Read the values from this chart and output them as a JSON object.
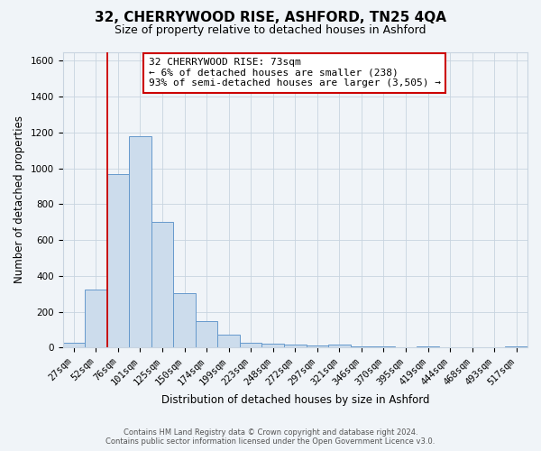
{
  "title": "32, CHERRYWOOD RISE, ASHFORD, TN25 4QA",
  "subtitle": "Size of property relative to detached houses in Ashford",
  "xlabel": "Distribution of detached houses by size in Ashford",
  "ylabel": "Number of detached properties",
  "bar_labels": [
    "27sqm",
    "52sqm",
    "76sqm",
    "101sqm",
    "125sqm",
    "150sqm",
    "174sqm",
    "199sqm",
    "223sqm",
    "248sqm",
    "272sqm",
    "297sqm",
    "321sqm",
    "346sqm",
    "370sqm",
    "395sqm",
    "419sqm",
    "444sqm",
    "468sqm",
    "493sqm",
    "517sqm"
  ],
  "bar_values": [
    25,
    325,
    970,
    1180,
    700,
    305,
    150,
    70,
    25,
    20,
    15,
    10,
    15,
    5,
    5,
    0,
    5,
    0,
    0,
    0,
    5
  ],
  "bar_color": "#ccdcec",
  "bar_edge_color": "#6699cc",
  "ylim": [
    0,
    1650
  ],
  "yticks": [
    0,
    200,
    400,
    600,
    800,
    1000,
    1200,
    1400,
    1600
  ],
  "vline_index": 2,
  "vline_color": "#cc0000",
  "annotation_title": "32 CHERRYWOOD RISE: 73sqm",
  "annotation_line1": "← 6% of detached houses are smaller (238)",
  "annotation_line2": "93% of semi-detached houses are larger (3,505) →",
  "annotation_box_color": "#ffffff",
  "annotation_box_edge": "#cc0000",
  "footer_line1": "Contains HM Land Registry data © Crown copyright and database right 2024.",
  "footer_line2": "Contains public sector information licensed under the Open Government Licence v3.0.",
  "background_color": "#f0f4f8",
  "grid_color": "#c8d4e0",
  "title_fontsize": 11,
  "subtitle_fontsize": 9,
  "ylabel_fontsize": 8.5,
  "xlabel_fontsize": 8.5,
  "tick_fontsize": 7.5
}
